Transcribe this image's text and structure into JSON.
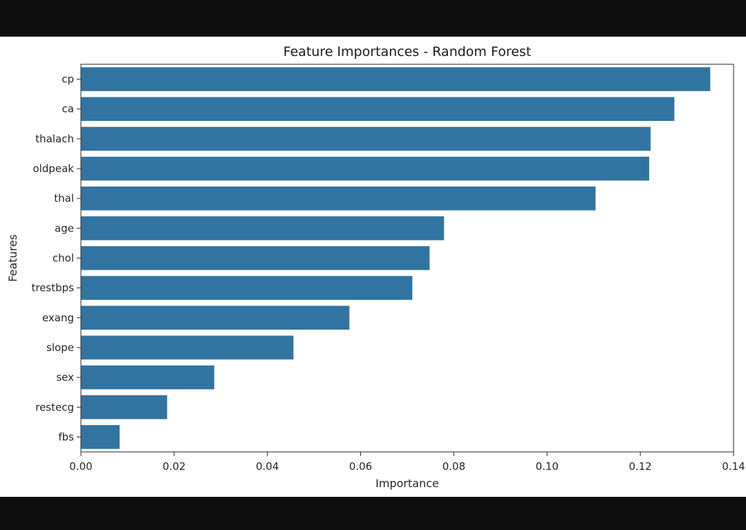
{
  "chart_data": {
    "type": "bar",
    "orientation": "horizontal",
    "title": "Feature Importances - Random Forest",
    "xlabel": "Importance",
    "ylabel": "Features",
    "categories": [
      "cp",
      "ca",
      "thalach",
      "oldpeak",
      "thal",
      "age",
      "chol",
      "trestbps",
      "exang",
      "slope",
      "sex",
      "restecg",
      "fbs"
    ],
    "values": [
      0.135,
      0.1273,
      0.1222,
      0.1219,
      0.1104,
      0.0779,
      0.0748,
      0.0711,
      0.0576,
      0.0456,
      0.0286,
      0.0185,
      0.0083
    ],
    "xlim": [
      0.0,
      0.14
    ],
    "xticks": [
      0.0,
      0.02,
      0.04,
      0.06,
      0.08,
      0.1,
      0.12,
      0.14
    ],
    "xtick_labels": [
      "0.00",
      "0.02",
      "0.04",
      "0.06",
      "0.08",
      "0.10",
      "0.12",
      "0.14"
    ],
    "grid": false,
    "bar_color": "#3274a1"
  }
}
